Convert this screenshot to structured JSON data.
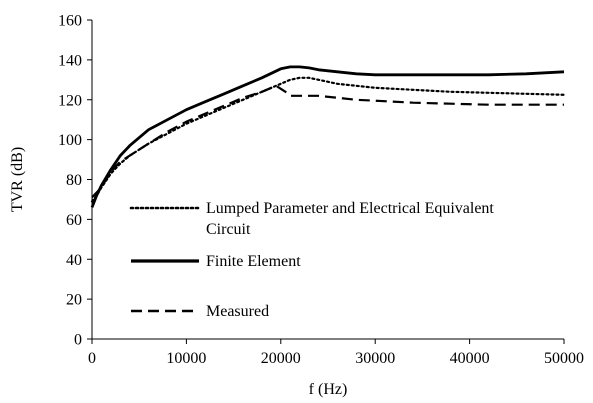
{
  "chart_data": {
    "type": "line",
    "xlabel": "f (Hz)",
    "ylabel": "TVR (dB)",
    "xlim": [
      0,
      50000
    ],
    "ylim": [
      0,
      160
    ],
    "x_ticks": [
      0,
      10000,
      20000,
      30000,
      40000,
      50000
    ],
    "y_ticks": [
      0,
      20,
      40,
      60,
      80,
      100,
      120,
      140,
      160
    ],
    "grid": false,
    "legend_position": "inside-left",
    "series": [
      {
        "name": "Lumped Parameter and Electrical Equivalent Circuit",
        "name_lines": [
          "Lumped Parameter and Electrical Equivalent",
          "Circuit"
        ],
        "style": "dotted",
        "color": "#000000",
        "x": [
          0,
          500,
          1000,
          2000,
          3000,
          4000,
          6000,
          8000,
          10000,
          12000,
          14000,
          16000,
          18000,
          20000,
          21000,
          22000,
          23000,
          24000,
          26000,
          28000,
          30000,
          34000,
          38000,
          42000,
          46000,
          50000
        ],
        "y": [
          69,
          72,
          76,
          83,
          88,
          92,
          98,
          103,
          108,
          112,
          116,
          120,
          124,
          128,
          130,
          131,
          131,
          130,
          128,
          127,
          126,
          125,
          124,
          123.5,
          123,
          122.5
        ]
      },
      {
        "name": "Finite Element",
        "style": "solid",
        "color": "#000000",
        "x": [
          0,
          500,
          1000,
          2000,
          3000,
          4000,
          6000,
          8000,
          10000,
          12000,
          14000,
          16000,
          18000,
          20000,
          21000,
          22000,
          23000,
          24000,
          26000,
          28000,
          30000,
          34000,
          38000,
          42000,
          46000,
          50000
        ],
        "y": [
          66,
          72,
          77,
          85,
          92,
          97,
          105,
          110,
          115,
          119,
          123,
          127,
          131,
          135.5,
          136.5,
          136.5,
          136,
          135,
          134,
          133,
          132.5,
          132.5,
          132.5,
          132.5,
          133,
          134
        ]
      },
      {
        "name": "Measured",
        "style": "dashed",
        "color": "#000000",
        "x": [
          0,
          1000,
          2000,
          3000,
          4000,
          5000,
          6000,
          8000,
          10000,
          12000,
          14000,
          16000,
          18000,
          19500,
          20500,
          21000,
          22000,
          24000,
          26000,
          28000,
          30000,
          34000,
          38000,
          42000,
          46000,
          50000
        ],
        "y": [
          71,
          76,
          84,
          89,
          92,
          95,
          98,
          104,
          109,
          113,
          117,
          121,
          124,
          127,
          124,
          122,
          122,
          122,
          121,
          120,
          119.5,
          118.5,
          118,
          117.5,
          117.5,
          117.5
        ]
      }
    ]
  }
}
